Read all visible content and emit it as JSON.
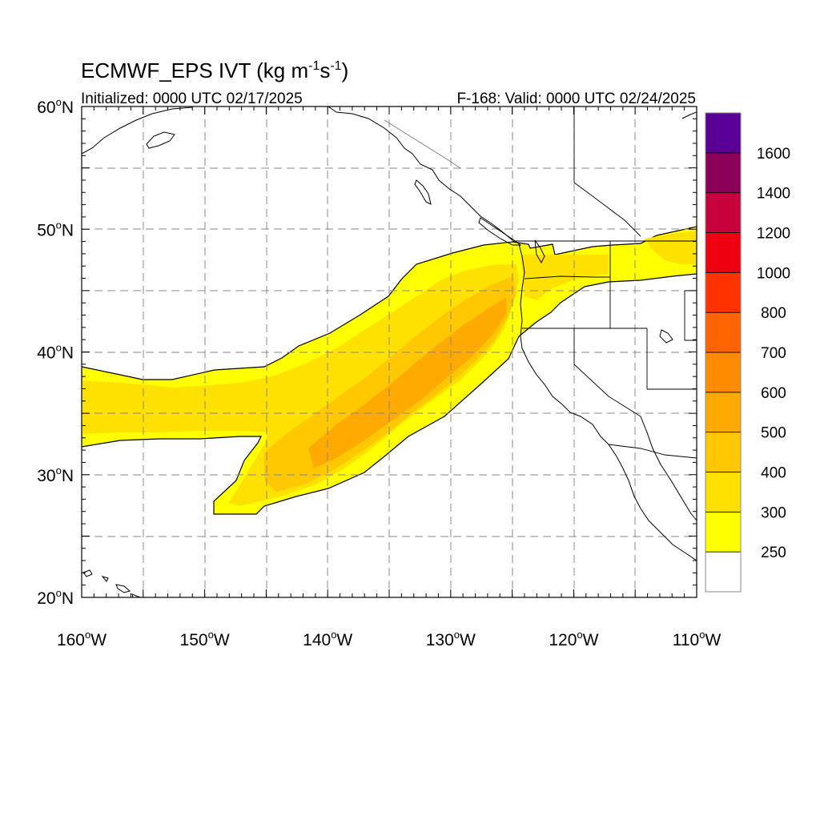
{
  "title": {
    "main": "ECMWF_EPS IVT (kg m",
    "exp1": "-1",
    "mid": "s",
    "exp2": "-1",
    "close": ")"
  },
  "subtitle_left": "Initialized: 0000 UTC 02/17/2025",
  "subtitle_right": "F-168: Valid: 0000 UTC 02/24/2025",
  "map": {
    "lon_range": [
      -160,
      -110
    ],
    "lat_range": [
      20,
      60
    ],
    "lon_labels": [
      {
        "lon": -160,
        "text": "160"
      },
      {
        "lon": -150,
        "text": "150"
      },
      {
        "lon": -140,
        "text": "140"
      },
      {
        "lon": -130,
        "text": "130"
      },
      {
        "lon": -120,
        "text": "120"
      },
      {
        "lon": -110,
        "text": "110"
      }
    ],
    "lat_labels": [
      {
        "lat": 60,
        "text": "60"
      },
      {
        "lat": 50,
        "text": "50"
      },
      {
        "lat": 40,
        "text": "40"
      },
      {
        "lat": 30,
        "text": "30"
      },
      {
        "lat": 20,
        "text": "20"
      }
    ],
    "deg_symbol": "o",
    "west_suffix": "W",
    "north_suffix": "N",
    "grid_lons": [
      -155,
      -150,
      -145,
      -140,
      -135,
      -130,
      -125,
      -120,
      -115
    ],
    "grid_lats": [
      25,
      30,
      35,
      40,
      45,
      50,
      55
    ],
    "grid": true
  },
  "colorbar": {
    "labels": [
      "250",
      "300",
      "400",
      "500",
      "600",
      "700",
      "800",
      "1000",
      "1200",
      "1400",
      "1600"
    ],
    "colors": [
      "#ffffff",
      "#ffff00",
      "#ffe100",
      "#ffc800",
      "#ffaa00",
      "#ff8c00",
      "#ff6400",
      "#ff3200",
      "#ee0010",
      "#c8003c",
      "#8c005a",
      "#5a0096"
    ]
  }
}
